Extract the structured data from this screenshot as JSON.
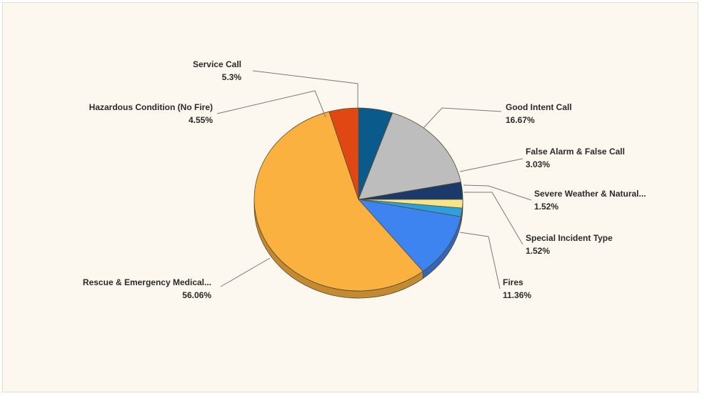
{
  "chart_data": {
    "type": "pie",
    "three_d": true,
    "start_angle_deg": -90,
    "slices": [
      {
        "label": "Service Call",
        "value": 5.3,
        "value_label": "5.3%",
        "color": "#0b5a8c"
      },
      {
        "label": "Good Intent Call",
        "value": 16.67,
        "value_label": "16.67%",
        "color": "#bdbdbd"
      },
      {
        "label": "False Alarm & False Call",
        "value": 3.03,
        "value_label": "3.03%",
        "color": "#1b3a6b"
      },
      {
        "label": "Severe Weather & Natural...",
        "value": 1.52,
        "value_label": "1.52%",
        "color": "#f5e58a"
      },
      {
        "label": "Special Incident Type",
        "value": 1.52,
        "value_label": "1.52%",
        "color": "#2ba0dd"
      },
      {
        "label": "Fires",
        "value": 11.36,
        "value_label": "11.36%",
        "color": "#3d84f0"
      },
      {
        "label": "Rescue & Emergency Medical...",
        "value": 56.06,
        "value_label": "56.06%",
        "color": "#fbb13f"
      },
      {
        "label": "Hazardous Condition (No Fire)",
        "value": 4.55,
        "value_label": "4.55%",
        "color": "#df4812"
      }
    ]
  }
}
